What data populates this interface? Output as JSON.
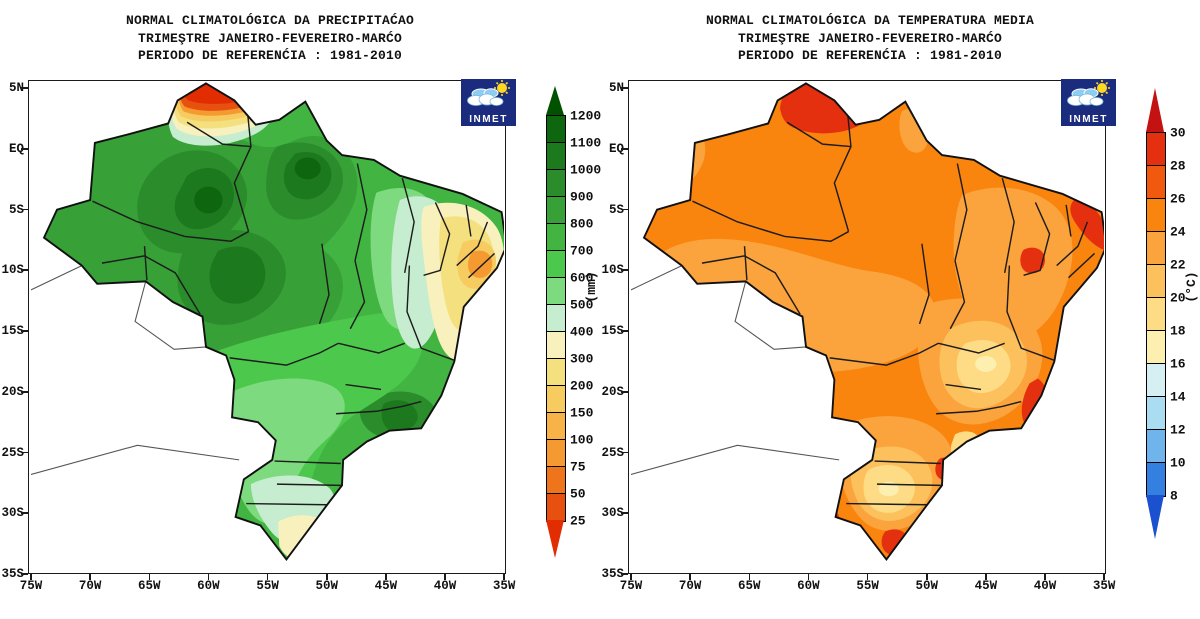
{
  "panels": [
    {
      "id": "precipitation",
      "title_lines": [
        "NORMAL CLIMATOLÓGICA DA PRECIPITAĆAO",
        "TRIMEŞTRE JANEIRO-FEVEREIRO-MARĆO",
        "PERIODO DE REFERENĆIA : 1981-2010"
      ],
      "logo_text": "INMET",
      "axes": {
        "lat_labels": [
          "5N",
          "EQ",
          "5S",
          "10S",
          "15S",
          "20S",
          "25S",
          "30S",
          "35S"
        ],
        "lon_labels": [
          "75W",
          "70W",
          "65W",
          "60W",
          "55W",
          "50W",
          "45W",
          "40W",
          "35W"
        ]
      },
      "colorbar": {
        "unit": "(mm)",
        "values": [
          "1200",
          "1100",
          "1000",
          "900",
          "800",
          "700",
          "600",
          "500",
          "400",
          "300",
          "200",
          "150",
          "100",
          "75",
          "50",
          "25"
        ],
        "colors": [
          "#005200",
          "#0e660e",
          "#1d791d",
          "#2b8c2b",
          "#37a037",
          "#41b441",
          "#4cc84c",
          "#7eda7e",
          "#c6edcf",
          "#f8f1bd",
          "#f4e07e",
          "#f6cb60",
          "#f7b348",
          "#f59a31",
          "#ef751d",
          "#e85010",
          "#e22d03"
        ]
      }
    },
    {
      "id": "temperature",
      "title_lines": [
        "NORMAL CLIMATOLÓGICA DA TEMPERATURA MEDIA",
        "TRIMEŞTRE JANEIRO-FEVEREIRO-MARĆO",
        "PERIODO DE REFERENĆIA : 1981-2010"
      ],
      "logo_text": "INMET",
      "axes": {
        "lat_labels": [
          "5N",
          "EQ",
          "5S",
          "10S",
          "15S",
          "20S",
          "25S",
          "30S",
          "35S"
        ],
        "lon_labels": [
          "75W",
          "70W",
          "65W",
          "60W",
          "55W",
          "50W",
          "45W",
          "40W",
          "35W"
        ]
      },
      "colorbar": {
        "unit": "(°C)",
        "values": [
          "30",
          "28",
          "26",
          "24",
          "22",
          "20",
          "18",
          "16",
          "14",
          "12",
          "10",
          "8"
        ],
        "colors": [
          "#c41111",
          "#e5300f",
          "#f1590e",
          "#f9840e",
          "#fba33c",
          "#fcc05c",
          "#fddc85",
          "#fdefb0",
          "#d5eff2",
          "#aadcf2",
          "#6fb4ea",
          "#3380e0",
          "#1b50cf"
        ]
      }
    }
  ],
  "chart_data": [
    {
      "type": "contour_map",
      "variable": "precipitation climatological normal",
      "region": "Brazil",
      "trimester": "JANEIRO-FEVEREIRO-MARCO",
      "reference_period": "1981-2010",
      "unit": "mm",
      "levels": [
        25,
        50,
        75,
        100,
        150,
        200,
        300,
        400,
        500,
        600,
        700,
        800,
        900,
        1000,
        1100,
        1200
      ],
      "lat_range": [
        "5N",
        "35S"
      ],
      "lon_range": [
        "75W",
        "35W"
      ],
      "notes": "High precipitation (800-1200+ mm, dark green) over central/eastern Amazon; minimum (<25-100 mm, red/orange) over far-north Roraima; 100-400 mm (yellow/tan) over east Northeast coast; 400-600 mm (pale green) over far South."
    },
    {
      "type": "contour_map",
      "variable": "mean temperature climatological normal",
      "region": "Brazil",
      "trimester": "JANEIRO-FEVEREIRO-MARCO",
      "reference_period": "1981-2010",
      "unit": "°C",
      "levels": [
        8,
        10,
        12,
        14,
        16,
        18,
        20,
        22,
        24,
        26,
        28,
        30
      ],
      "lat_range": [
        "5N",
        "35S"
      ],
      "lon_range": [
        "75W",
        "35W"
      ],
      "notes": "Mostly 26-28°C (orange) over Amazon and Northeast coast; 28-30°C (red) spots in far north, northeast tip, east coast and far south; 18-24°C (yellow) over southeastern highlands and South region."
    }
  ]
}
